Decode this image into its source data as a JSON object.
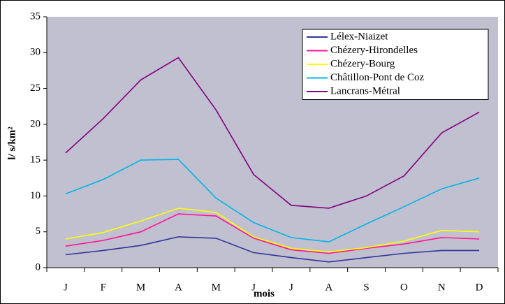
{
  "chart_data": {
    "type": "line",
    "xlabel": "mois",
    "ylabel": "l/ s/km²",
    "categories": [
      "J",
      "F",
      "M",
      "A",
      "M",
      "J",
      "J",
      "A",
      "S",
      "O",
      "N",
      "D"
    ],
    "series": [
      {
        "name": "Lélex-Niaizet",
        "color": "#333399",
        "values": [
          1.8,
          2.4,
          3.1,
          4.3,
          4.1,
          2.1,
          1.4,
          0.8,
          1.4,
          2.0,
          2.4,
          2.4
        ]
      },
      {
        "name": "Chézery-Hirondelles",
        "color": "#ff1493",
        "values": [
          3.0,
          3.8,
          5.0,
          7.5,
          7.2,
          4.1,
          2.5,
          2.0,
          2.7,
          3.3,
          4.2,
          4.0
        ]
      },
      {
        "name": "Chézery-Bourg",
        "color": "#ffff00",
        "values": [
          4.0,
          4.9,
          6.5,
          8.3,
          7.7,
          4.3,
          2.7,
          2.2,
          2.8,
          3.7,
          5.2,
          5.0
        ]
      },
      {
        "name": "Châtillon-Pont de Coz",
        "color": "#00b4e6",
        "values": [
          10.3,
          12.3,
          15.0,
          15.1,
          9.7,
          6.3,
          4.2,
          3.6,
          6.1,
          8.5,
          11.0,
          12.5
        ]
      },
      {
        "name": "Lancrans-Métral",
        "color": "#800080",
        "values": [
          16.0,
          20.8,
          26.2,
          29.3,
          22.0,
          13.0,
          8.7,
          8.3,
          10.0,
          12.8,
          18.8,
          21.7
        ]
      }
    ],
    "ylim": [
      0,
      35
    ],
    "yticks": [
      0,
      5,
      10,
      15,
      20,
      25,
      30,
      35
    ],
    "grid": false,
    "legend": "upper right"
  }
}
